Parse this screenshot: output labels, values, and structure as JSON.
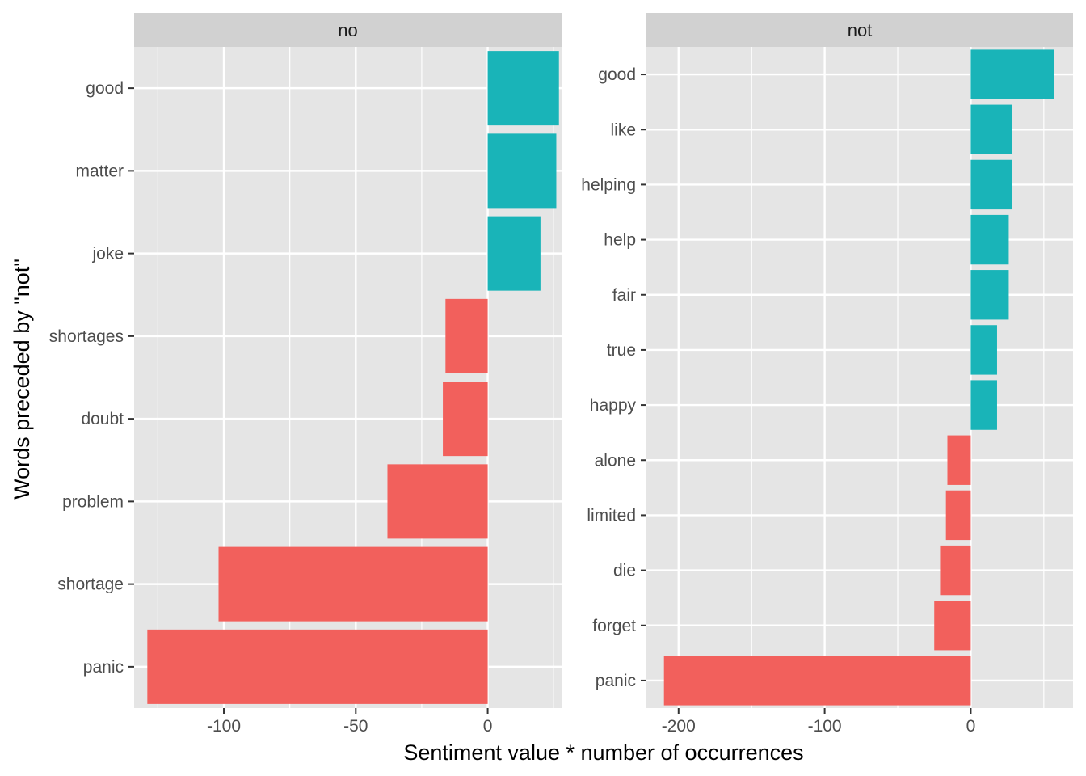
{
  "colors": {
    "positive": "#19B4B8",
    "negative": "#F2605C",
    "panel_bg": "#E5E5E5",
    "strip_bg": "#D1D1D1",
    "grid": "#FFFFFF",
    "tick_text": "#4D4D4D"
  },
  "chart_data": {
    "type": "bar",
    "orientation": "horizontal",
    "xlabel": "Sentiment value * number of occurrences",
    "ylabel": "Words preceded by \"not\"",
    "grid": true,
    "legend": "none",
    "facets": [
      {
        "strip_label": "no",
        "xlim": [
          -134,
          28
        ],
        "x_ticks": [
          -100,
          -50,
          0
        ],
        "x_tick_labels": [
          "-100",
          "-50",
          "0"
        ],
        "categories": [
          "good",
          "matter",
          "joke",
          "shortages",
          "doubt",
          "problem",
          "shortage",
          "panic"
        ],
        "values": [
          27,
          26,
          20,
          -16,
          -17,
          -38,
          -102,
          -129
        ],
        "sign": [
          "positive",
          "positive",
          "positive",
          "negative",
          "negative",
          "negative",
          "negative",
          "negative"
        ]
      },
      {
        "strip_label": "not",
        "xlim": [
          -222,
          70
        ],
        "x_ticks": [
          -200,
          -100,
          0
        ],
        "x_tick_labels": [
          "-200",
          "-100",
          "0"
        ],
        "categories": [
          "good",
          "like",
          "helping",
          "help",
          "fair",
          "true",
          "happy",
          "alone",
          "limited",
          "die",
          "forget",
          "panic"
        ],
        "values": [
          57,
          28,
          28,
          26,
          26,
          18,
          18,
          -16,
          -17,
          -21,
          -25,
          -210
        ],
        "sign": [
          "positive",
          "positive",
          "positive",
          "positive",
          "positive",
          "positive",
          "positive",
          "negative",
          "negative",
          "negative",
          "negative",
          "negative"
        ]
      }
    ]
  }
}
